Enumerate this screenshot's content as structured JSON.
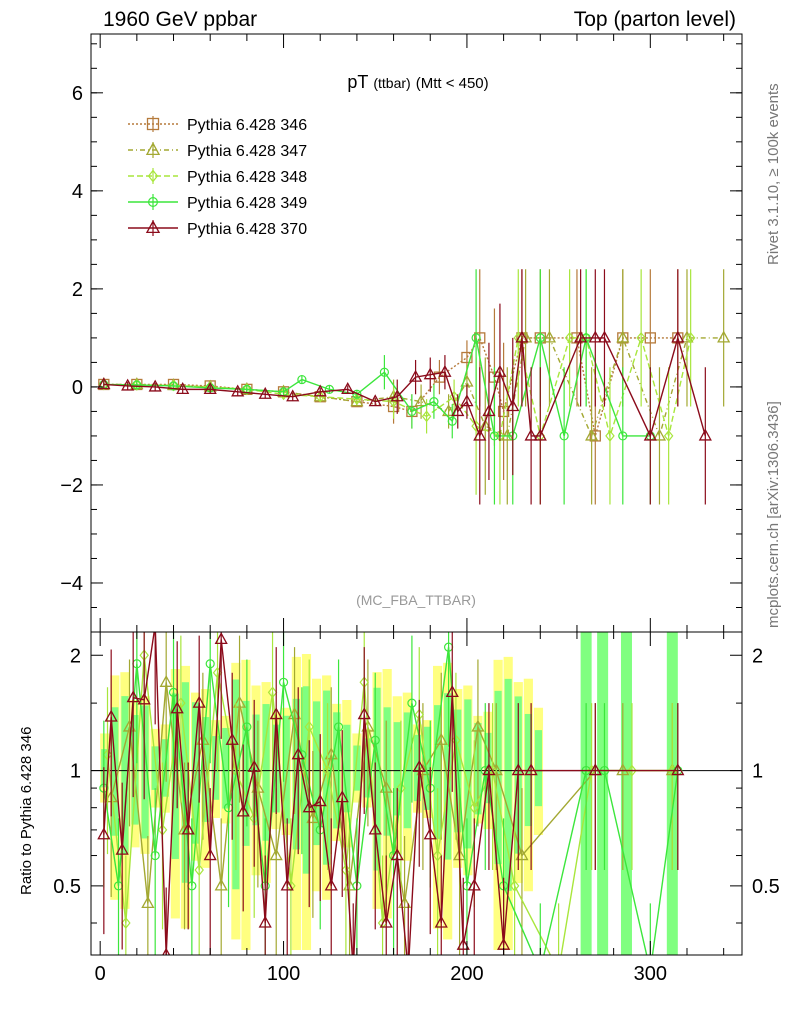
{
  "header": {
    "left": "1960 GeV ppbar",
    "right": "Top (parton level)"
  },
  "side_labels": {
    "rivet": "Rivet 3.1.10, ≥ 100k events",
    "mcplots": "mcplots.cern.ch [arXiv:1306.3436]"
  },
  "analysis_label": "(MC_FBA_TTBAR)",
  "ratio_ylabel": "Ratio to Pythia 6.428 346",
  "colors": {
    "s346": "#b57a3b",
    "s347": "#a3a832",
    "s348": "#a8e63c",
    "s349": "#3ce63c",
    "s370": "#8b0b1b",
    "band_yellow": "#ffff80",
    "band_green": "#80ff80"
  },
  "chart_data": [
    {
      "type": "line",
      "title": {
        "main": "pT",
        "sub1": "(ttbar)",
        "sub2": "(Mtt < 450)"
      },
      "xlim": [
        -5,
        350
      ],
      "ylim": [
        -5,
        7.2
      ],
      "yticks": [
        -4,
        -2,
        0,
        2,
        4,
        6
      ],
      "ytick_labels": [
        "−4",
        "−2",
        "0",
        "2",
        "4",
        "6"
      ],
      "legend_placement": "top-left",
      "series": [
        {
          "name": "Pythia 6.428 346",
          "key": "s346",
          "marker": "square",
          "dash": "2,2",
          "x": [
            2,
            20,
            40,
            60,
            80,
            100,
            120,
            140,
            160,
            170,
            185,
            200,
            207,
            215,
            220,
            230,
            240,
            260,
            270,
            285,
            300,
            315
          ],
          "y": [
            0.05,
            0.05,
            0.05,
            0.02,
            -0.05,
            -0.1,
            -0.2,
            -0.3,
            -0.4,
            -0.5,
            0.2,
            0.6,
            1,
            0.2,
            -0.5,
            1,
            1,
            1,
            -1,
            1,
            1,
            1
          ]
        },
        {
          "name": "Pythia 6.428 347",
          "key": "s347",
          "marker": "triangle",
          "dash": "5,3,1,3",
          "x": [
            2,
            20,
            40,
            60,
            80,
            100,
            120,
            140,
            160,
            175,
            190,
            200,
            210,
            222,
            232,
            245,
            268,
            285,
            305,
            320,
            340
          ],
          "y": [
            0.05,
            0.05,
            0.03,
            0,
            -0.05,
            -0.1,
            -0.2,
            -0.3,
            -0.2,
            -0.3,
            -0.5,
            0.1,
            -0.8,
            -1,
            1,
            1,
            -1,
            1,
            -1,
            1,
            1
          ]
        },
        {
          "name": "Pythia 6.428 348",
          "key": "s348",
          "marker": "diamond",
          "dash": "6,3",
          "x": [
            2,
            20,
            40,
            60,
            80,
            100,
            120,
            140,
            160,
            178,
            193,
            205,
            218,
            228,
            240,
            256,
            265,
            278,
            295,
            310,
            322
          ],
          "y": [
            0.05,
            0.04,
            0.03,
            0,
            -0.05,
            -0.15,
            -0.2,
            -0.25,
            -0.3,
            -0.6,
            -0.2,
            -0.8,
            -1,
            1,
            -1,
            1,
            1,
            -1,
            1,
            -1,
            1
          ]
        },
        {
          "name": "Pythia 6.428 349",
          "key": "s349",
          "marker": "circle",
          "dash": "",
          "x": [
            2,
            20,
            40,
            60,
            80,
            100,
            110,
            125,
            140,
            155,
            170,
            182,
            192,
            205,
            215,
            225,
            240,
            253,
            265,
            285,
            300
          ],
          "y": [
            0.05,
            0.04,
            0.02,
            -0.02,
            -0.05,
            -0.1,
            0.15,
            -0.05,
            -0.15,
            0.3,
            -0.5,
            -0.3,
            -0.7,
            1,
            -1,
            -1,
            1,
            -1,
            1,
            -1,
            -1
          ]
        },
        {
          "name": "Pythia 6.428 370",
          "key": "s370",
          "marker": "triangle",
          "dash": "",
          "x": [
            2,
            15,
            30,
            45,
            60,
            75,
            90,
            105,
            120,
            135,
            150,
            162,
            172,
            180,
            188,
            195,
            200,
            207,
            212,
            218,
            225,
            230,
            235,
            240,
            262,
            270,
            275,
            300,
            315,
            330
          ],
          "y": [
            0.05,
            0.02,
            0,
            -0.05,
            -0.05,
            -0.1,
            -0.15,
            -0.2,
            -0.1,
            -0.05,
            -0.3,
            -0.2,
            0.2,
            0.25,
            0.3,
            -0.5,
            -0.3,
            -1,
            -0.5,
            0.3,
            -0.4,
            1,
            -1,
            -1,
            1,
            1,
            1,
            -1,
            1,
            -1
          ]
        }
      ]
    },
    {
      "type": "line",
      "title": "",
      "ylabel": "Ratio to Pythia 6.428 346",
      "xlim": [
        -5,
        350
      ],
      "ylim": [
        0.33,
        2.3
      ],
      "xticks": [
        0,
        100,
        200,
        300
      ],
      "yticks": [
        0.5,
        1,
        2
      ],
      "ytick_labels": [
        "0.5",
        "1",
        "2"
      ],
      "reference_line": 1,
      "series": [
        {
          "name": "Pythia 6.428 370",
          "key": "s370",
          "marker": "triangle",
          "x": [
            2,
            6,
            12,
            18,
            24,
            30,
            36,
            42,
            48,
            54,
            60,
            66,
            72,
            78,
            84,
            90,
            96,
            102,
            108,
            114,
            120,
            126,
            132,
            138,
            144,
            150,
            156,
            162,
            168,
            174,
            180,
            186,
            192,
            198,
            204,
            212,
            220,
            228,
            235,
            270,
            315
          ],
          "y": [
            0.68,
            1.38,
            0.62,
            1.55,
            1.53,
            2.4,
            0.33,
            1.45,
            0.7,
            1.5,
            0.6,
            2.2,
            1.2,
            0.78,
            1.02,
            0.4,
            1.4,
            0.5,
            1.1,
            0.8,
            0.83,
            0.5,
            0.85,
            0.3,
            1.4,
            0.7,
            0.4,
            0.6,
            0.3,
            1.02,
            0.68,
            0.4,
            1.6,
            0.35,
            0.5,
            1,
            0.35,
            1,
            1,
            1,
            1
          ]
        },
        {
          "name": "Pythia 6.428 349",
          "key": "s349",
          "marker": "circle",
          "x": [
            2,
            10,
            20,
            30,
            40,
            50,
            60,
            70,
            80,
            90,
            100,
            110,
            120,
            130,
            140,
            150,
            160,
            170,
            180,
            190,
            200,
            210,
            220,
            240,
            265,
            275,
            300,
            315
          ],
          "y": [
            0.9,
            0.5,
            1.9,
            0.6,
            1.6,
            0.5,
            1.9,
            0.8,
            1.3,
            0.5,
            1.7,
            1.1,
            0.7,
            1.3,
            0.5,
            1.2,
            0.6,
            1.5,
            0.9,
            2.1,
            0.5,
            1,
            0.5,
            0.3,
            1,
            1,
            0.3,
            1
          ]
        },
        {
          "name": "Pythia 6.428 348",
          "key": "s348",
          "marker": "diamond",
          "x": [
            4,
            14,
            24,
            34,
            44,
            54,
            64,
            74,
            84,
            94,
            104,
            114,
            124,
            134,
            144,
            154,
            164,
            174,
            184,
            194,
            204,
            214,
            226,
            250,
            268,
            290,
            312
          ],
          "y": [
            1.1,
            0.4,
            2.0,
            0.7,
            1.5,
            0.55,
            1.8,
            1.0,
            0.75,
            1.6,
            0.5,
            1.3,
            1.0,
            0.55,
            1.7,
            0.4,
            0.9,
            1.4,
            0.6,
            1.2,
            0.8,
            1,
            0.5,
            0.3,
            1,
            1,
            1
          ]
        },
        {
          "name": "Pythia 6.428 347",
          "key": "s347",
          "marker": "triangle",
          "x": [
            6,
            16,
            26,
            36,
            46,
            56,
            66,
            76,
            86,
            96,
            106,
            116,
            126,
            136,
            146,
            156,
            166,
            176,
            186,
            196,
            206,
            216,
            230,
            270,
            285,
            312
          ],
          "y": [
            0.85,
            1.3,
            0.45,
            1.7,
            0.7,
            1.2,
            0.5,
            1.5,
            0.9,
            0.6,
            1.4,
            0.75,
            1.1,
            0.5,
            1.3,
            0.9,
            0.45,
            1.0,
            1.2,
            0.6,
            1.3,
            1,
            0.6,
            1,
            1,
            1
          ]
        }
      ]
    }
  ]
}
